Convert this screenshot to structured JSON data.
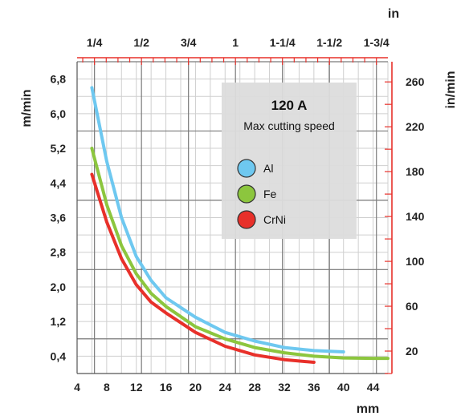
{
  "chart_data": {
    "type": "line",
    "x_axis": {
      "label": "mm",
      "ticks": [
        "4",
        "8",
        "12",
        "16",
        "20",
        "24",
        "28",
        "32",
        "36",
        "40",
        "44"
      ],
      "range": [
        4,
        46
      ]
    },
    "top_axis": {
      "label": "in",
      "ticks": [
        "1/4",
        "1/2",
        "3/4",
        "1",
        "1-1/4",
        "1-1/2",
        "1-3/4"
      ]
    },
    "y_left": {
      "label": "m/min",
      "ticks": [
        "0,4",
        "1,2",
        "2,0",
        "2,8",
        "3,6",
        "4,4",
        "5,2",
        "6,0",
        "6,8"
      ],
      "range": [
        0,
        7.2
      ]
    },
    "y_right": {
      "label": "in/min",
      "ticks": [
        "20",
        "60",
        "100",
        "140",
        "180",
        "220",
        "260"
      ]
    },
    "legend": {
      "title": "120 A",
      "subtitle": "Max cutting speed"
    },
    "grid": true,
    "series": [
      {
        "name": "Al",
        "color": "#6ec8f0",
        "x": [
          6,
          8,
          10,
          12,
          14,
          16,
          20,
          24,
          28,
          32,
          36,
          40
        ],
        "y": [
          6.6,
          4.9,
          3.6,
          2.7,
          2.15,
          1.75,
          1.3,
          0.95,
          0.75,
          0.6,
          0.53,
          0.5
        ]
      },
      {
        "name": "Fe",
        "color": "#8cc63e",
        "x": [
          6,
          8,
          10,
          12,
          14,
          16,
          20,
          24,
          28,
          32,
          36,
          40,
          44,
          46
        ],
        "y": [
          5.2,
          3.9,
          2.95,
          2.3,
          1.85,
          1.55,
          1.08,
          0.8,
          0.6,
          0.48,
          0.4,
          0.36,
          0.35,
          0.35
        ]
      },
      {
        "name": "CrNi",
        "color": "#e8302a",
        "x": [
          6,
          8,
          10,
          12,
          14,
          16,
          20,
          24,
          28,
          32,
          36
        ],
        "y": [
          4.6,
          3.5,
          2.65,
          2.05,
          1.65,
          1.4,
          0.95,
          0.63,
          0.43,
          0.32,
          0.26
        ]
      }
    ]
  }
}
